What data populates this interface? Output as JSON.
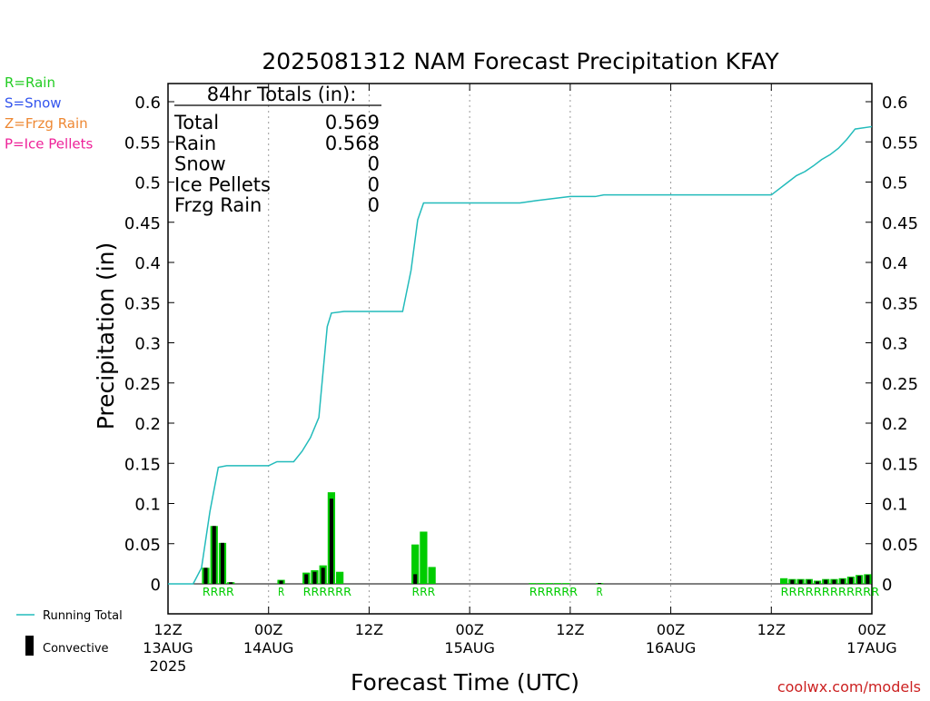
{
  "chart_data": {
    "type": "bar",
    "title": "2025081312 NAM Forecast Precipitation KFAY",
    "ylabel": "Precipitation (in)",
    "xlabel": "Forecast Time (UTC)",
    "ylim": [
      -0.04,
      0.625
    ],
    "xlim": [
      0,
      84
    ],
    "y_ticks": [
      0,
      0.05,
      0.1,
      0.15,
      0.2,
      0.25,
      0.3,
      0.35,
      0.4,
      0.45,
      0.5,
      0.55,
      0.6
    ],
    "y_tick_labels": [
      "0",
      "0.05",
      "0.1",
      "0.15",
      "0.2",
      "0.25",
      "0.3",
      "0.35",
      "0.4",
      "0.45",
      "0.5",
      "0.55",
      "0.6"
    ],
    "x_ticks": [
      {
        "hour": 0,
        "lines": [
          "12Z",
          "13AUG",
          "2025"
        ]
      },
      {
        "hour": 12,
        "lines": [
          "00Z",
          "14AUG"
        ]
      },
      {
        "hour": 24,
        "lines": [
          "12Z"
        ]
      },
      {
        "hour": 36,
        "lines": [
          "00Z",
          "15AUG"
        ]
      },
      {
        "hour": 48,
        "lines": [
          "12Z"
        ]
      },
      {
        "hour": 60,
        "lines": [
          "00Z",
          "16AUG"
        ]
      },
      {
        "hour": 72,
        "lines": [
          "12Z"
        ]
      },
      {
        "hour": 84,
        "lines": [
          "00Z",
          "17AUG"
        ]
      }
    ],
    "gridlines_at_hours": [
      12,
      24,
      36,
      48,
      60,
      72
    ],
    "legend_types": [
      {
        "label": "R=Rain",
        "color": "#22cc22"
      },
      {
        "label": "S=Snow",
        "color": "#3355ee"
      },
      {
        "label": "Z=Frzg Rain",
        "color": "#ee8833"
      },
      {
        "label": "P=Ice Pellets",
        "color": "#ee2299"
      }
    ],
    "legend_series": [
      {
        "label": "Running Total",
        "color": "#22bbbb"
      },
      {
        "label": "Convective",
        "color": "#000000"
      }
    ],
    "totals": {
      "header": "84hr Totals (in):",
      "rows": [
        {
          "label": "Total",
          "value": "0.569"
        },
        {
          "label": "Rain",
          "value": "0.568"
        },
        {
          "label": "Snow",
          "value": "0"
        },
        {
          "label": "Ice Pellets",
          "value": "0"
        },
        {
          "label": "Frzg Rain",
          "value": "0"
        }
      ]
    },
    "precip_type_labels": [
      {
        "start_hour": 4,
        "text": "RRRR"
      },
      {
        "start_hour": 13,
        "text": "R"
      },
      {
        "start_hour": 16,
        "text": "RRRRRR"
      },
      {
        "start_hour": 29,
        "text": "RRR"
      },
      {
        "start_hour": 43,
        "text": "RRRRRR"
      },
      {
        "start_hour": 51,
        "text": "R"
      },
      {
        "start_hour": 73,
        "text": "RRRRRRRRRRRR"
      }
    ],
    "bars": [
      {
        "hour": 5,
        "total": 0.02,
        "convective": 0.02
      },
      {
        "hour": 6,
        "total": 0.072,
        "convective": 0.072
      },
      {
        "hour": 7,
        "total": 0.051,
        "convective": 0.051
      },
      {
        "hour": 8,
        "total": 0.002,
        "convective": 0.002
      },
      {
        "hour": 14,
        "total": 0.005,
        "convective": 0.004
      },
      {
        "hour": 17,
        "total": 0.014,
        "convective": 0.012
      },
      {
        "hour": 18,
        "total": 0.017,
        "convective": 0.015
      },
      {
        "hour": 19,
        "total": 0.023,
        "convective": 0.02
      },
      {
        "hour": 20,
        "total": 0.114,
        "convective": 0.106
      },
      {
        "hour": 21,
        "total": 0.015,
        "convective": 0.0
      },
      {
        "hour": 30,
        "total": 0.049,
        "convective": 0.012
      },
      {
        "hour": 31,
        "total": 0.065,
        "convective": 0.0
      },
      {
        "hour": 32,
        "total": 0.021,
        "convective": 0.0
      },
      {
        "hour": 44,
        "total": 0.001,
        "convective": 0.0
      },
      {
        "hour": 45,
        "total": 0.001,
        "convective": 0.0
      },
      {
        "hour": 46,
        "total": 0.001,
        "convective": 0.0
      },
      {
        "hour": 47,
        "total": 0.001,
        "convective": 0.0
      },
      {
        "hour": 48,
        "total": 0.001,
        "convective": 0.0
      },
      {
        "hour": 52,
        "total": 0.001,
        "convective": 0.001
      },
      {
        "hour": 74,
        "total": 0.007,
        "convective": 0.0
      },
      {
        "hour": 75,
        "total": 0.006,
        "convective": 0.005
      },
      {
        "hour": 76,
        "total": 0.006,
        "convective": 0.005
      },
      {
        "hour": 77,
        "total": 0.006,
        "convective": 0.005
      },
      {
        "hour": 78,
        "total": 0.004,
        "convective": 0.003
      },
      {
        "hour": 79,
        "total": 0.006,
        "convective": 0.005
      },
      {
        "hour": 80,
        "total": 0.006,
        "convective": 0.005
      },
      {
        "hour": 81,
        "total": 0.007,
        "convective": 0.006
      },
      {
        "hour": 82,
        "total": 0.009,
        "convective": 0.008
      },
      {
        "hour": 83,
        "total": 0.011,
        "convective": 0.01
      },
      {
        "hour": 84,
        "total": 0.012,
        "convective": 0.011
      }
    ],
    "running_total": [
      [
        0,
        0
      ],
      [
        3,
        0
      ],
      [
        4,
        0.02
      ],
      [
        5,
        0.09
      ],
      [
        6,
        0.145
      ],
      [
        7,
        0.147
      ],
      [
        8,
        0.147
      ],
      [
        12,
        0.147
      ],
      [
        13,
        0.152
      ],
      [
        15,
        0.152
      ],
      [
        16,
        0.165
      ],
      [
        17,
        0.182
      ],
      [
        18,
        0.207
      ],
      [
        19,
        0.32
      ],
      [
        19.5,
        0.337
      ],
      [
        21,
        0.339
      ],
      [
        28,
        0.339
      ],
      [
        29,
        0.39
      ],
      [
        29.8,
        0.453
      ],
      [
        30.5,
        0.474
      ],
      [
        42,
        0.474
      ],
      [
        44,
        0.477
      ],
      [
        48,
        0.482
      ],
      [
        51,
        0.482
      ],
      [
        52,
        0.484
      ],
      [
        72,
        0.484
      ],
      [
        74,
        0.5
      ],
      [
        75,
        0.508
      ],
      [
        76,
        0.513
      ],
      [
        77,
        0.52
      ],
      [
        78,
        0.528
      ],
      [
        79,
        0.534
      ],
      [
        80,
        0.542
      ],
      [
        81,
        0.553
      ],
      [
        82,
        0.566
      ],
      [
        84,
        0.569
      ]
    ]
  },
  "credit": "coolwx.com/models",
  "colors": {
    "rain_bar": "#00cc00",
    "convective_bar": "#000000",
    "running_total": "#22bbbb",
    "grid": "#999999",
    "credit": "#cc2222"
  }
}
